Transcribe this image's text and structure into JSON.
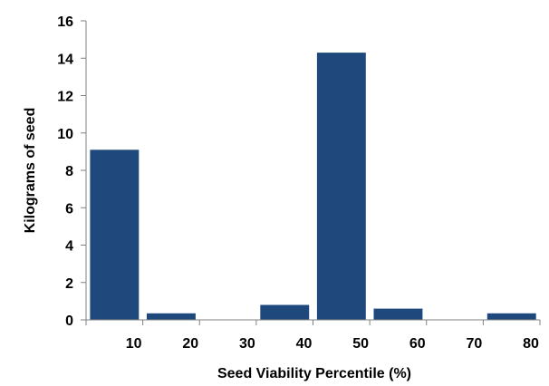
{
  "chart_data": {
    "type": "bar",
    "title": "",
    "xlabel": "Seed Viability Percentile (%)",
    "ylabel": "Kilograms of seed",
    "categories": [
      "10",
      "20",
      "30",
      "40",
      "50",
      "60",
      "70",
      "80"
    ],
    "values": [
      9.1,
      0.35,
      0,
      0.8,
      14.3,
      0.6,
      0,
      0.35
    ],
    "ylim": [
      0,
      16
    ],
    "yticks": [
      "0",
      "2",
      "4",
      "6",
      "8",
      "10",
      "12",
      "14",
      "16"
    ],
    "grid": false,
    "legend": "none",
    "bar_color": "#1f497d",
    "axis_color": "#808080"
  }
}
